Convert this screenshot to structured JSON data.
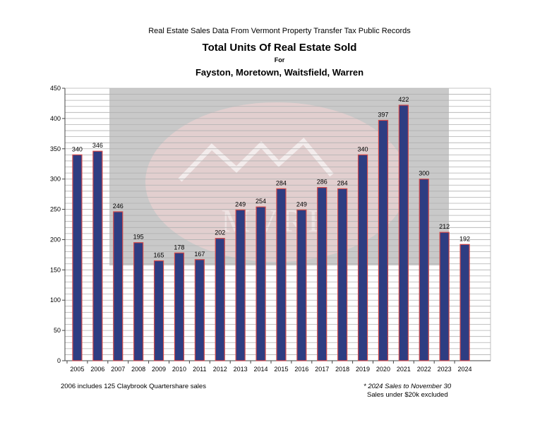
{
  "header": {
    "supertitle": "Real Estate Sales Data From Vermont Property Transfer Tax Public Records",
    "title": "Total Units Of Real Estate Sold",
    "for_label": "For",
    "subtitle": "Fayston, Moretown, Waitsfield, Warren"
  },
  "notes": {
    "left": "2006 includes 125 Claybrook Quartershare sales",
    "right_line1": "* 2024 Sales to November 30",
    "right_line2": "Sales under $20k excluded"
  },
  "watermark": {
    "text": "MVRE"
  },
  "colors": {
    "bar_fill": "#2e3d82",
    "bar_stroke": "#d24a4a",
    "grid": "#b0b0b0",
    "watermark_bg": "#c9c9c9",
    "watermark_logo": "#e2cfcf"
  },
  "chart_data": {
    "type": "bar",
    "title": "Total Units Of Real Estate Sold",
    "xlabel": "",
    "ylabel": "",
    "ylim": [
      0,
      450
    ],
    "yticks": [
      0,
      50,
      100,
      150,
      200,
      250,
      300,
      350,
      400,
      450
    ],
    "grid": true,
    "minor_grid_step": 10,
    "categories": [
      "2005",
      "2006",
      "2007",
      "2008",
      "2009",
      "2010",
      "2011",
      "2012",
      "2013",
      "2014",
      "2015",
      "2016",
      "2017",
      "2018",
      "2019",
      "2020",
      "2021",
      "2022",
      "2023",
      "2024"
    ],
    "values": [
      340,
      346,
      246,
      195,
      165,
      178,
      167,
      202,
      249,
      254,
      284,
      249,
      286,
      284,
      340,
      397,
      422,
      300,
      212,
      192
    ],
    "data_labels": [
      "340",
      "346",
      "246",
      "195",
      "165",
      "178",
      "167",
      "202",
      "249",
      "254",
      "284",
      "249",
      "286",
      "284",
      "340",
      "397",
      "422",
      "300",
      "212",
      "192"
    ]
  }
}
